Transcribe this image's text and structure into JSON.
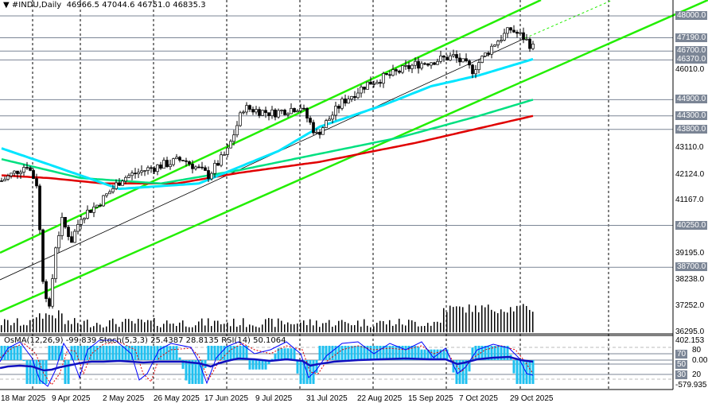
{
  "header": {
    "symbol_label": "#INDU,Daily",
    "open": "46966.5",
    "high": "47044.6",
    "low": "46751.0",
    "close": "46835.3"
  },
  "indicator": {
    "label": "OsMA(12,26,9) -99.839  Stoch(5,3,3) 25.4387 28.8135  RSI(14) 50.1064"
  },
  "price_axis": {
    "ticks": [
      "46010.0",
      "43110.0",
      "42124.0",
      "41167.0",
      "39195.0",
      "38238.0",
      "37252.0",
      "36295.0"
    ],
    "levels": [
      "48000.0",
      "47190.0",
      "46700.0",
      "46370.0",
      "44900.0",
      "44300.0",
      "43800.0",
      "40250.0",
      "38700.0"
    ]
  },
  "indicator_axis": {
    "top": "402.153",
    "bottom": "-579.935",
    "zero": "0.00",
    "levels": [
      "70",
      "50",
      "30"
    ],
    "dashed": [
      "80",
      "20"
    ]
  },
  "time_axis": [
    "18 Mar 2025",
    "9 Apr 2025",
    "2 May 2025",
    "26 May 2025",
    "17 Jun 2025",
    "9 Jul 2025",
    "31 Jul 2025",
    "22 Aug 2025",
    "15 Sep 2025",
    "7 Oct 2025",
    "29 Oct 2025"
  ],
  "colors": {
    "ma50": "#00e5ff",
    "ma100": "#00e080",
    "ma200": "#e00000",
    "channel": "#22ee00",
    "level": "#7b8595",
    "osma": "#1ec0f0",
    "rsi": "#0000cc"
  },
  "chart_data": {
    "type": "candlestick",
    "symbol": "#INDU",
    "timeframe": "Daily",
    "ylim": [
      36295,
      48000
    ],
    "close_keypoints": [
      [
        0,
        41900
      ],
      [
        8,
        42500
      ],
      [
        11,
        41800
      ],
      [
        13,
        38300
      ],
      [
        15,
        37100
      ],
      [
        17,
        39500
      ],
      [
        19,
        40400
      ],
      [
        22,
        39700
      ],
      [
        25,
        40600
      ],
      [
        30,
        41000
      ],
      [
        38,
        42000
      ],
      [
        45,
        42300
      ],
      [
        57,
        42700
      ],
      [
        65,
        42100
      ],
      [
        71,
        43000
      ],
      [
        76,
        44600
      ],
      [
        85,
        44400
      ],
      [
        94,
        44650
      ],
      [
        99,
        43600
      ],
      [
        107,
        44800
      ],
      [
        115,
        45500
      ],
      [
        122,
        45800
      ],
      [
        130,
        46200
      ],
      [
        142,
        46500
      ],
      [
        148,
        46000
      ],
      [
        155,
        47000
      ],
      [
        160,
        47500
      ],
      [
        164,
        47200
      ],
      [
        167,
        46835
      ]
    ],
    "ma50": [
      [
        0,
        43100
      ],
      [
        15,
        42500
      ],
      [
        37,
        41600
      ],
      [
        62,
        41800
      ],
      [
        87,
        43000
      ],
      [
        100,
        43900
      ],
      [
        120,
        44700
      ],
      [
        135,
        45400
      ],
      [
        150,
        45800
      ],
      [
        167,
        46400
      ]
    ],
    "ma100": [
      [
        0,
        42700
      ],
      [
        25,
        42000
      ],
      [
        50,
        41800
      ],
      [
        75,
        42300
      ],
      [
        100,
        42900
      ],
      [
        125,
        43500
      ],
      [
        150,
        44300
      ],
      [
        167,
        44900
      ]
    ],
    "ma200": [
      [
        0,
        42100
      ],
      [
        15,
        42000
      ],
      [
        32,
        41800
      ],
      [
        55,
        41800
      ],
      [
        75,
        42200
      ],
      [
        100,
        42600
      ],
      [
        130,
        43300
      ],
      [
        167,
        44300
      ]
    ]
  }
}
